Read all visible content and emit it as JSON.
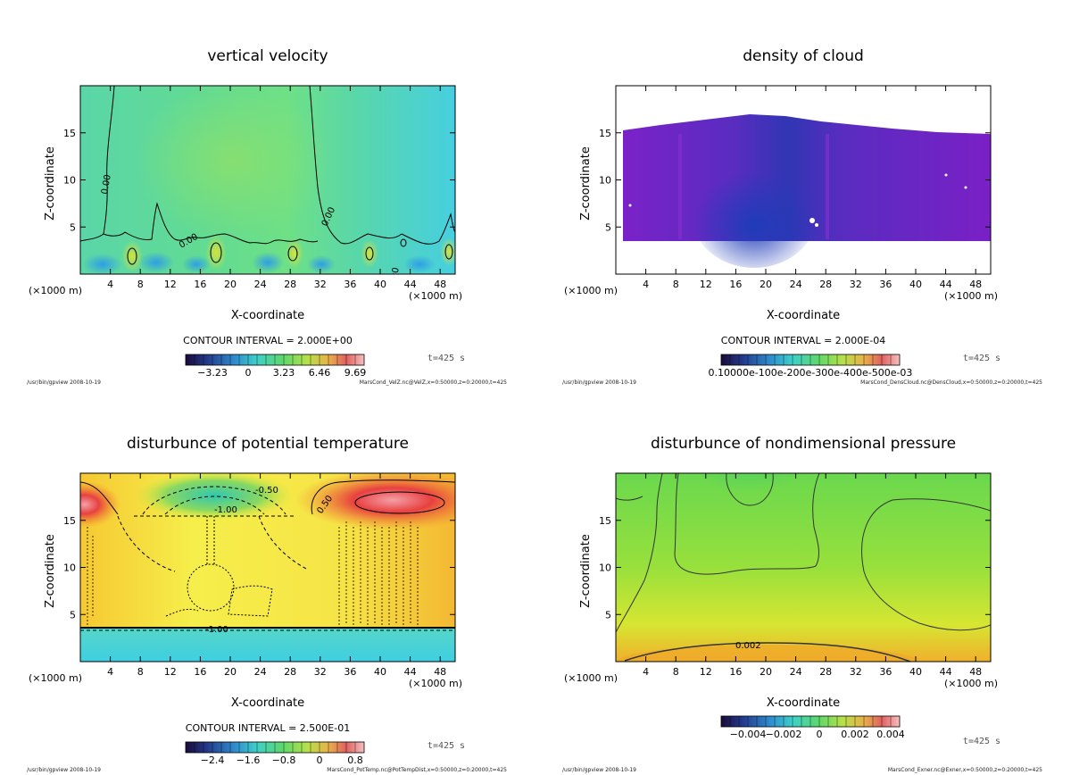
{
  "chart_data": [
    {
      "type": "heatmap",
      "title": "vertical velocity",
      "xlabel": "X-coordinate",
      "ylabel": "Z-coordinate",
      "x_unit_left": "(×1000 m)",
      "x_unit_right": "(×1000 m)",
      "xlim": [
        0,
        50
      ],
      "ylim": [
        0,
        20
      ],
      "xticks": [
        "4",
        "8",
        "12",
        "16",
        "20",
        "24",
        "28",
        "32",
        "36",
        "40",
        "44",
        "48"
      ],
      "yticks": [
        "5",
        "10",
        "15"
      ],
      "contour_interval": "CONTOUR INTERVAL = 2.000E+00",
      "colorbar_ticks": [
        "−3.23",
        "0",
        "3.23",
        "6.46",
        "9.69"
      ],
      "contour_labels": [
        "0.00",
        "0.00",
        "0.00",
        "0.00"
      ],
      "time_label": "t=425 s",
      "footer_left": "/usr/bin/gpview  2008-10-19",
      "footer_right": "MarsCond_VelZ.nc@VelZ,x=0:50000,z=0:20000,t=425"
    },
    {
      "type": "heatmap",
      "title": "density of cloud",
      "xlabel": "X-coordinate",
      "ylabel": "Z-coordinate",
      "x_unit_left": "(×1000 m)",
      "x_unit_right": "(×1000 m)",
      "xlim": [
        0,
        50
      ],
      "ylim": [
        0,
        20
      ],
      "xticks": [
        "4",
        "8",
        "12",
        "16",
        "20",
        "24",
        "28",
        "32",
        "36",
        "40",
        "44",
        "48"
      ],
      "yticks": [
        "5",
        "10",
        "15"
      ],
      "contour_interval": "CONTOUR INTERVAL = 2.000E-04",
      "colorbar_ticks": [
        "0.10000e-100e-200e-300e-400e-500e-03"
      ],
      "contour_labels": [],
      "time_label": "t=425 s",
      "footer_left": "/usr/bin/gpview  2008-10-19",
      "footer_right": "MarsCond_DensCloud.nc@DensCloud,x=0:50000,z=0:20000,t=425"
    },
    {
      "type": "heatmap",
      "title": "disturbunce of potential temperature",
      "xlabel": "X-coordinate",
      "ylabel": "Z-coordinate",
      "x_unit_left": "(×1000 m)",
      "x_unit_right": "(×1000 m)",
      "xlim": [
        0,
        50
      ],
      "ylim": [
        0,
        20
      ],
      "xticks": [
        "4",
        "8",
        "12",
        "16",
        "20",
        "24",
        "28",
        "32",
        "36",
        "40",
        "44",
        "48"
      ],
      "yticks": [
        "5",
        "10",
        "15"
      ],
      "contour_interval": "CONTOUR INTERVAL = 2.500E-01",
      "colorbar_ticks": [
        "−2.4",
        "−1.6",
        "−0.8",
        "0",
        "0.8"
      ],
      "contour_labels": [
        "-0.50",
        "-1.00",
        "0.50",
        "-1.00"
      ],
      "time_label": "t=425 s",
      "footer_left": "/usr/bin/gpview  2008-10-19",
      "footer_right": "MarsCond_PotTemp.nc@PotTempDist,x=0:50000,z=0:20000,t=425"
    },
    {
      "type": "heatmap",
      "title": "disturbunce of nondimensional pressure",
      "xlabel": "X-coordinate",
      "ylabel": "Z-coordinate",
      "x_unit_left": "(×1000 m)",
      "x_unit_right": "(×1000 m)",
      "xlim": [
        0,
        50
      ],
      "ylim": [
        0,
        20
      ],
      "xticks": [
        "4",
        "8",
        "12",
        "16",
        "20",
        "24",
        "28",
        "32",
        "36",
        "40",
        "44",
        "48"
      ],
      "yticks": [
        "5",
        "10",
        "15"
      ],
      "contour_interval": "",
      "colorbar_ticks": [
        "−0.004",
        "−0.002",
        "0",
        "0.002",
        "0.004"
      ],
      "contour_labels": [
        "0.002"
      ],
      "time_label": "t=425 s",
      "footer_left": "/usr/bin/gpview  2008-10-19",
      "footer_right": "MarsCond_Exner.nc@Exner,x=0:50000,z=0:20000,t=425"
    }
  ]
}
